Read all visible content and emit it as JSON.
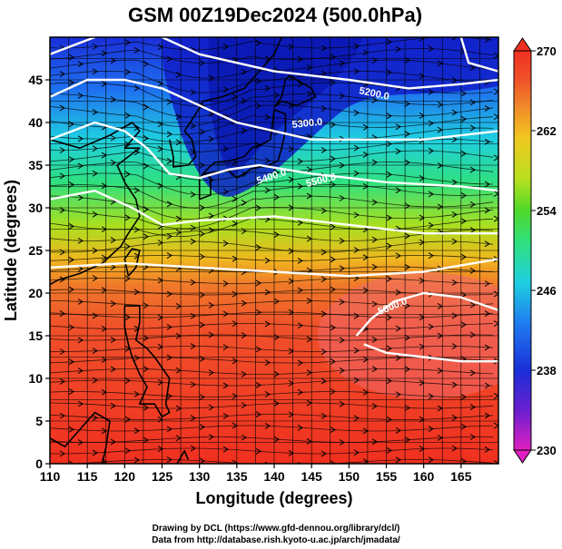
{
  "title": "GSM 00Z19Dec2024 (500.0hPa)",
  "xlabel": "Longitude (degrees)",
  "ylabel": "Latitude  (degrees)",
  "credits": {
    "line1": "Drawing by DCL (https://www.gfd-dennou.org/library/dcl/)",
    "line2": "Data from http://database.rish.kyoto-u.ac.jp/arch/jmadata/"
  },
  "map": {
    "xlim": [
      110,
      170
    ],
    "ylim": [
      0,
      50
    ],
    "xticks": [
      "110",
      "115",
      "120",
      "125",
      "130",
      "135",
      "140",
      "145",
      "150",
      "155",
      "160",
      "165"
    ],
    "yticks": [
      "0",
      "5",
      "10",
      "15",
      "20",
      "25",
      "30",
      "35",
      "40",
      "45"
    ],
    "grid": true
  },
  "colorbar": {
    "range": [
      230,
      270
    ],
    "ticks": [
      "230",
      "238",
      "246",
      "254",
      "262",
      "270"
    ],
    "colors": [
      "#e020c0",
      "#6a1fd0",
      "#1a2fd8",
      "#1f7ef0",
      "#1fcfe0",
      "#2fe07f",
      "#4fd82a",
      "#b8e01f",
      "#f0c81f",
      "#f08a2a",
      "#f0502a",
      "#f03020"
    ]
  },
  "contour_labels": [
    "5200.0",
    "5300.0",
    "5400.0",
    "5500.0",
    "5800.0"
  ],
  "chart_data": {
    "type": "heatmap",
    "title": "GSM 00Z19Dec2024 (500.0hPa)",
    "xlabel": "Longitude (degrees)",
    "ylabel": "Latitude  (degrees)",
    "xlim": [
      110,
      170
    ],
    "ylim": [
      0,
      50
    ],
    "zlim": [
      230,
      270
    ],
    "contour_levels": [
      5200,
      5300,
      5400,
      5500,
      5800
    ]
  }
}
